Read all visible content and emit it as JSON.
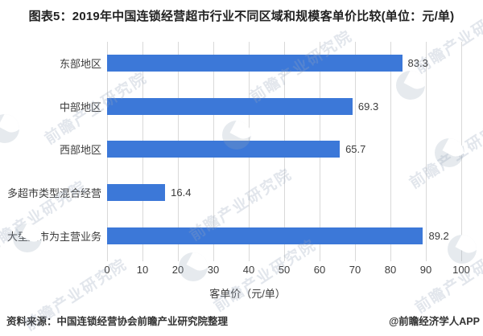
{
  "title": "图表5：2019年中国连锁经营超市行业不同区域和规模客单价比较(单位：元/单)",
  "chart_data": {
    "type": "bar",
    "orientation": "horizontal",
    "title": "图表5：2019年中国连锁经营超市行业不同区域和规模客单价比较(单位：元/单)",
    "categories": [
      "东部地区",
      "中部地区",
      "西部地区",
      "多超市类型混合经营",
      "大型超市为主营业务"
    ],
    "values": [
      83.3,
      69.3,
      65.7,
      16.4,
      89.2
    ],
    "series_name": "客单价（元/单）",
    "xlabel": "",
    "ylabel": "",
    "xlim": [
      0,
      100
    ],
    "x_ticks": [
      0,
      10,
      20,
      30,
      40,
      50,
      60,
      70,
      80,
      90,
      100
    ],
    "grid": true,
    "legend_position": "bottom",
    "bar_color": "#3C78D8",
    "gridline_color": "#d9d9d9"
  },
  "legend": {
    "label": "客单价（元/单）"
  },
  "footer": {
    "source": "资料来源：中国连锁经营协会前瞻产业研究院整理",
    "credit": "@前瞻经济学人APP"
  },
  "watermark": {
    "text": "前瞻产业研究院"
  }
}
